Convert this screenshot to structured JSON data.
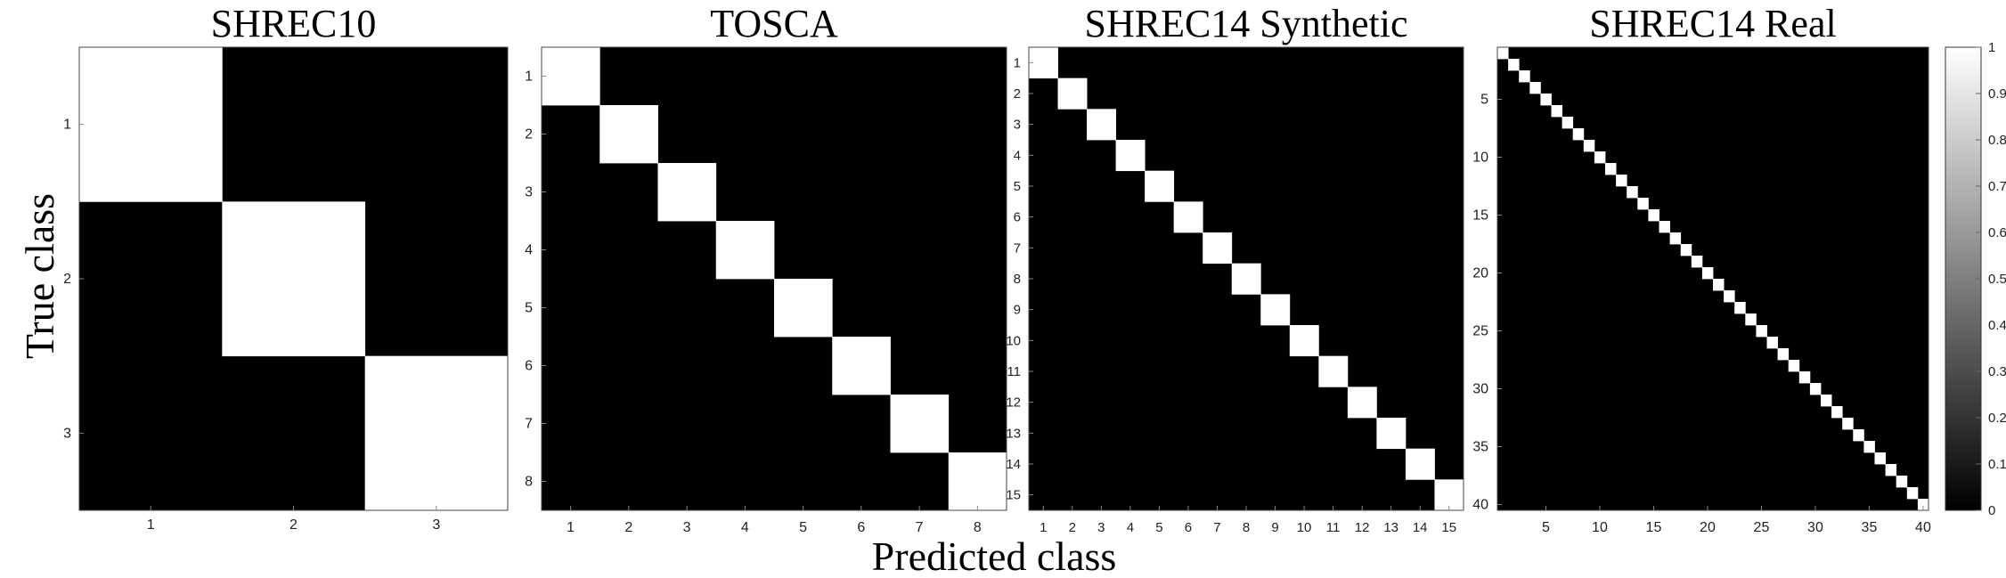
{
  "figure": {
    "xlabel": "Predicted class",
    "ylabel": "True class"
  },
  "colorbar": {
    "ticks": [
      "0",
      "0.1",
      "0.2",
      "0.3",
      "0.4",
      "0.5",
      "0.6",
      "0.7",
      "0.8",
      "0.9",
      "1"
    ],
    "range": [
      0,
      1
    ],
    "colormap": "gray",
    "low_color": "#000000",
    "high_color": "#ffffff"
  },
  "chart_data": [
    {
      "type": "heatmap",
      "title": "SHREC10",
      "n": 3,
      "matrix": "identity",
      "diagonal_value": 1,
      "off_diagonal_value": 0,
      "xticks": [
        1,
        2,
        3
      ],
      "yticks": [
        1,
        2,
        3
      ]
    },
    {
      "type": "heatmap",
      "title": "TOSCA",
      "n": 8,
      "matrix": "identity",
      "diagonal_value": 1,
      "off_diagonal_value": 0,
      "xticks": [
        1,
        2,
        3,
        4,
        5,
        6,
        7,
        8
      ],
      "yticks": [
        1,
        2,
        3,
        4,
        5,
        6,
        7,
        8
      ]
    },
    {
      "type": "heatmap",
      "title": "SHREC14 Synthetic",
      "n": 15,
      "matrix": "identity",
      "diagonal_value": 1,
      "off_diagonal_value": 0,
      "xticks": [
        1,
        2,
        3,
        4,
        5,
        6,
        7,
        8,
        9,
        10,
        11,
        12,
        13,
        14,
        15
      ],
      "yticks": [
        1,
        2,
        3,
        4,
        5,
        6,
        7,
        8,
        9,
        10,
        11,
        12,
        13,
        14,
        15
      ]
    },
    {
      "type": "heatmap",
      "title": "SHREC14 Real",
      "n": 40,
      "matrix": "identity",
      "diagonal_value": 1,
      "off_diagonal_value": 0,
      "xticks": [
        5,
        10,
        15,
        20,
        25,
        30,
        35,
        40
      ],
      "yticks": [
        5,
        10,
        15,
        20,
        25,
        30,
        35,
        40
      ]
    }
  ]
}
